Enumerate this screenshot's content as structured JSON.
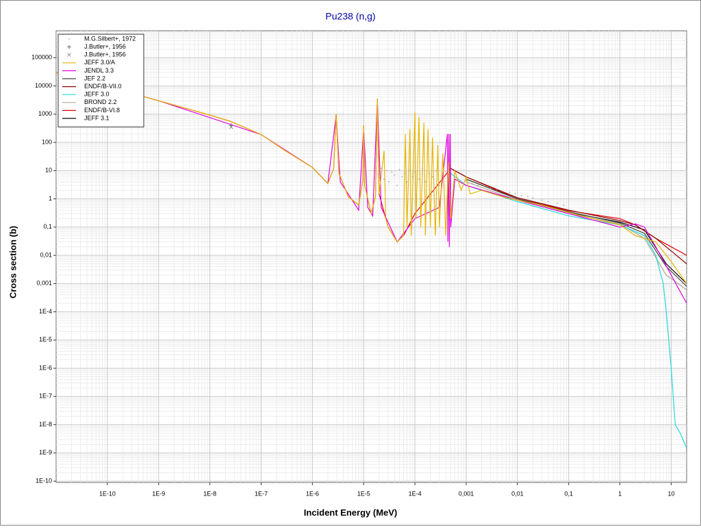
{
  "chart_data": {
    "type": "line",
    "title": "Pu238 (n,g)",
    "x_label": "Incident Energy (MeV)",
    "y_label": "Cross section (b)",
    "x_log": true,
    "y_log": true,
    "grid": true,
    "minor_grid": true,
    "legend": "top-left",
    "xlim": [
      1e-11,
      20
    ],
    "ylim": [
      9e-11,
      900000
    ],
    "xticks": [
      {
        "value": 1e-10,
        "label": "1E-10"
      },
      {
        "value": 1e-09,
        "label": "1E-9"
      },
      {
        "value": 1e-08,
        "label": "1E-8"
      },
      {
        "value": 1e-07,
        "label": "1E-7"
      },
      {
        "value": 1e-06,
        "label": "1E-6"
      },
      {
        "value": 1e-05,
        "label": "1E-5"
      },
      {
        "value": 0.0001,
        "label": "1E-4"
      },
      {
        "value": 0.001,
        "label": "0,001"
      },
      {
        "value": 0.01,
        "label": "0,01"
      },
      {
        "value": 0.1,
        "label": "0,1"
      },
      1,
      10
    ],
    "yticks": [
      100000,
      10000,
      1000,
      100,
      10,
      1,
      {
        "value": 0.1,
        "label": "0,1"
      },
      {
        "value": 0.01,
        "label": "0,01"
      },
      {
        "value": 0.001,
        "label": "0,001"
      },
      {
        "value": 0.0001,
        "label": "1E-4"
      },
      {
        "value": 1e-05,
        "label": "1E-5"
      },
      {
        "value": 1e-06,
        "label": "1E-6"
      },
      {
        "value": 1e-07,
        "label": "1E-7"
      },
      {
        "value": 1e-08,
        "label": "1E-8"
      },
      {
        "value": 1e-09,
        "label": "1E-9"
      },
      {
        "value": 1e-10,
        "label": "1E-10"
      }
    ],
    "series": [
      {
        "name": "M.G.Silbert+, 1972",
        "color": "#a0a0a0",
        "marker": "dot",
        "x": [
          2e-05,
          2.2e-05,
          2.5e-05,
          2.8e-05,
          3.1e-05,
          3.5e-05,
          4e-05,
          4.5e-05,
          5e-05,
          5.6e-05,
          6.3e-05,
          7e-05,
          8e-05,
          9e-05,
          0.0001,
          0.00012,
          0.00014,
          0.00016,
          0.00019,
          0.00022,
          0.00026,
          0.0003,
          0.00035,
          0.0004,
          0.0005,
          0.0006,
          0.0008,
          0.001,
          0.0013,
          0.0017,
          0.0022,
          0.003,
          0.004,
          0.005,
          0.007,
          0.009,
          0.012,
          0.016,
          0.02,
          0.03,
          0.04,
          0.06,
          0.08
        ],
        "values": [
          8,
          12,
          5,
          10,
          4,
          9,
          7,
          3,
          11,
          6,
          8,
          4,
          10,
          6,
          9,
          5,
          12,
          4,
          8,
          6,
          10,
          3,
          7,
          9,
          5,
          6,
          4,
          4.5,
          3.5,
          3,
          2.8,
          2.4,
          2.2,
          1.9,
          1.7,
          1.5,
          1.3,
          1.2,
          1.1,
          0.9,
          0.8,
          0.7,
          0.6
        ]
      },
      {
        "name": "J.Butler+, 1956",
        "color": "#707070",
        "marker": "plus",
        "x": [
          2.6e-08
        ],
        "values": [
          400
        ]
      },
      {
        "name": "J.Butler+, 1956",
        "color": "#909090",
        "marker": "cross",
        "x": [
          2.6e-08
        ],
        "values": [
          350
        ]
      },
      {
        "name": "JEFF 3.0/A",
        "color": "#e6b400",
        "x": [
          1e-11,
          1e-10,
          1e-09,
          1e-08,
          2.5e-08,
          1e-07,
          3e-07,
          1e-06,
          2e-06,
          2.6e-06,
          2.9e-06,
          3.3e-06,
          5e-06,
          8e-06,
          9.7e-06,
          1e-05,
          1.05e-05,
          1.4e-05,
          1.7e-05,
          1.85e-05,
          2e-05,
          2.5e-05,
          2.7e-05,
          3e-05,
          4.5e-05,
          6e-05,
          6.5e-05,
          7e-05,
          8e-05,
          8.5e-05,
          0.0001,
          0.000105,
          0.00012,
          0.00013,
          0.00015,
          0.00016,
          0.00018,
          0.0002,
          0.00022,
          0.00025,
          0.00028,
          0.0003,
          0.00035,
          0.0004,
          0.00045,
          0.0005,
          0.0006,
          0.0008,
          0.001,
          0.0012,
          0.002,
          0.005,
          0.01,
          0.03,
          0.1,
          0.3,
          1,
          2,
          5,
          10,
          20
        ],
        "values": [
          30000,
          9500,
          3000,
          930,
          560,
          190,
          50,
          13,
          3.5,
          12,
          1000,
          8,
          1.2,
          0.6,
          5,
          400,
          3,
          0.3,
          1.2,
          3500,
          1.5,
          50,
          0.2,
          0.1,
          0.03,
          0.05,
          200,
          0.1,
          300,
          0.05,
          1200,
          0.2,
          800,
          0.1,
          500,
          0.05,
          300,
          0.1,
          150,
          0.05,
          80,
          0.1,
          40,
          0.05,
          20,
          0.2,
          10,
          2,
          6,
          1.5,
          2,
          1.2,
          0.9,
          0.6,
          0.33,
          0.2,
          0.12,
          0.05,
          0.03,
          0.006,
          0.001
        ]
      },
      {
        "name": "JENDL 3.3",
        "color": "#e000e0",
        "x": [
          1e-11,
          1e-09,
          1e-07,
          1e-06,
          2e-06,
          2.9e-06,
          3.5e-06,
          8e-06,
          1e-05,
          1.2e-05,
          1.5e-05,
          1.85e-05,
          2.2e-05,
          4.5e-05,
          0.0001,
          0.0003,
          0.00043,
          0.00044,
          0.00046,
          0.00047,
          0.00049,
          0.0005,
          0.0006,
          0.001,
          0.01,
          0.1,
          1,
          2,
          3,
          5,
          10,
          20
        ],
        "values": [
          30000,
          3000,
          190,
          13,
          3.5,
          900,
          4,
          0.4,
          300,
          0.5,
          0.25,
          3000,
          0.5,
          0.03,
          0.2,
          0.5,
          200,
          0.03,
          200,
          0.02,
          200,
          0.1,
          5,
          3,
          0.9,
          0.3,
          0.1,
          0.13,
          0.1,
          0.02,
          0.002,
          0.0002
        ]
      },
      {
        "name": "JEF 2.2",
        "color": "#404040",
        "x": [
          0.001,
          0.01,
          0.1,
          1,
          3,
          8,
          20
        ],
        "values": [
          5,
          1,
          0.35,
          0.14,
          0.06,
          0.004,
          0.0008
        ]
      },
      {
        "name": "ENDF/B-VII.0",
        "color": "#8b0000",
        "x": [
          0.0005,
          0.001,
          0.01,
          0.1,
          1,
          2,
          5,
          8,
          20
        ],
        "values": [
          12,
          6,
          1.1,
          0.4,
          0.17,
          0.12,
          0.04,
          0.02,
          0.005
        ]
      },
      {
        "name": "JEFF 3.0",
        "color": "#20d8d8",
        "x": [
          0.0005,
          0.001,
          0.01,
          0.1,
          1,
          3,
          5,
          7,
          8,
          10,
          12,
          15,
          20
        ],
        "values": [
          8,
          3,
          0.8,
          0.25,
          0.12,
          0.05,
          0.01,
          0.001,
          0.0001,
          1e-06,
          1e-08,
          5e-09,
          1.5e-09
        ]
      },
      {
        "name": "BROND 2.2",
        "color": "#b0a890",
        "x": [
          0.001,
          0.01,
          0.1,
          1,
          3,
          8,
          20
        ],
        "values": [
          4,
          0.9,
          0.3,
          0.13,
          0.04,
          0.002,
          0.0006
        ]
      },
      {
        "name": "ENDF/B-VI.8",
        "color": "#e00000",
        "x": [
          1e-11,
          1e-10,
          1e-09,
          1e-08,
          2.5e-08,
          1e-07,
          3e-07,
          1e-06,
          2e-06,
          2.6e-06,
          2.9e-06,
          3.3e-06,
          5e-06,
          8e-06,
          9.7e-06,
          1e-05,
          1.05e-05,
          1.4e-05,
          1.7e-05,
          1.85e-05,
          2e-05,
          3e-05,
          4.5e-05,
          6e-05,
          0.0001,
          0.0005,
          0.001,
          0.01,
          0.1,
          1,
          2,
          5,
          8,
          20
        ],
        "values": [
          30000,
          9500,
          3000,
          930,
          560,
          190,
          50,
          13,
          3.5,
          12,
          1000,
          8,
          1.2,
          0.6,
          5,
          400,
          3,
          0.3,
          1.2,
          3500,
          1.5,
          0.1,
          0.03,
          0.05,
          0.3,
          12,
          6,
          1,
          0.38,
          0.2,
          0.12,
          0.04,
          0.025,
          0.01
        ]
      },
      {
        "name": "JEFF 3.1",
        "color": "#000000",
        "x": [
          0.001,
          0.01,
          0.1,
          1,
          3,
          8,
          20
        ],
        "values": [
          5,
          1,
          0.33,
          0.15,
          0.08,
          0.005,
          0.001
        ]
      }
    ]
  }
}
